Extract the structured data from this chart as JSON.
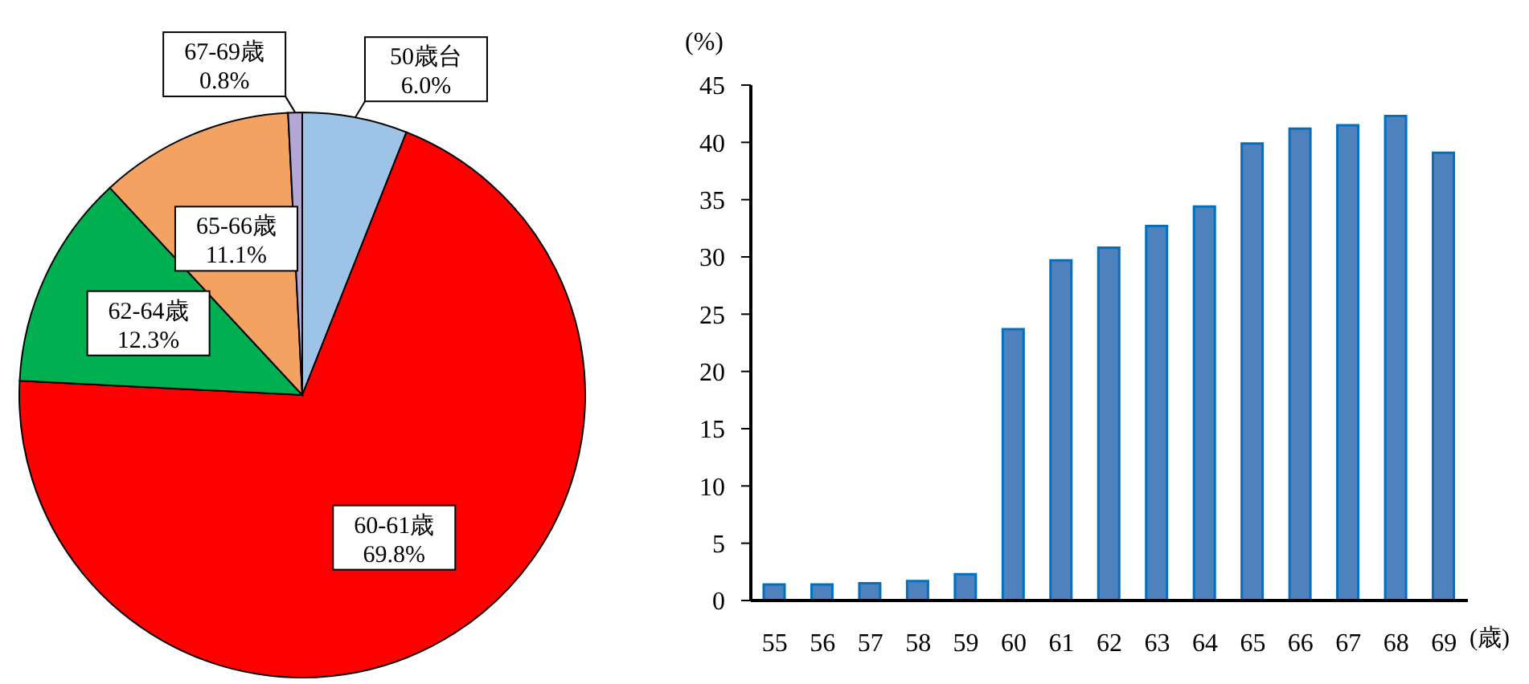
{
  "chart_data": [
    {
      "type": "pie",
      "categories": [
        "50歳台",
        "60-61歳",
        "62-64歳",
        "65-66歳",
        "67-69歳"
      ],
      "values": [
        6.0,
        69.8,
        12.3,
        11.1,
        0.8
      ],
      "value_labels": [
        "6.0%",
        "69.8%",
        "12.3%",
        "11.1%",
        "0.8%"
      ],
      "colors": [
        "#9dc3e6",
        "#ff0000",
        "#00b050",
        "#f4a261",
        "#b4a7d6"
      ]
    },
    {
      "type": "bar",
      "categories": [
        "55",
        "56",
        "57",
        "58",
        "59",
        "60",
        "61",
        "62",
        "63",
        "64",
        "65",
        "66",
        "67",
        "68",
        "69"
      ],
      "values": [
        1.4,
        1.4,
        1.5,
        1.7,
        2.3,
        23.7,
        29.7,
        30.8,
        32.7,
        34.4,
        39.9,
        41.2,
        41.5,
        42.3,
        39.1
      ],
      "color": "#4f81bd",
      "ylim": [
        0,
        45
      ],
      "yticks": [
        0,
        5,
        10,
        15,
        20,
        25,
        30,
        35,
        40,
        45
      ],
      "xlabel": "(歳)",
      "ylabel": "(%)"
    }
  ]
}
